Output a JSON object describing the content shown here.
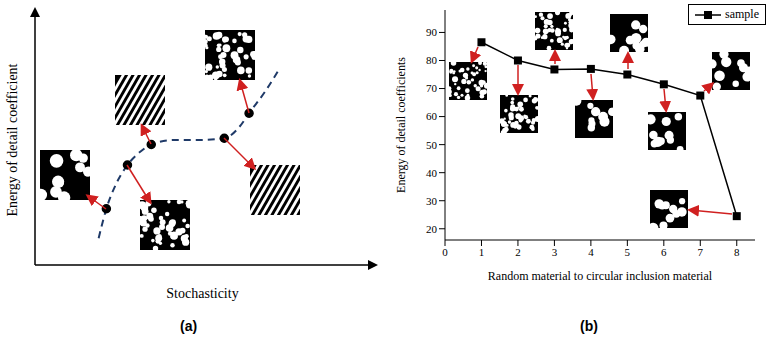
{
  "chart_data": [
    {
      "type": "line",
      "label": "(a)",
      "x_label": "Stochasticity",
      "y_label": "Energy of detail coefficient",
      "xlim": [
        0,
        10
      ],
      "ylim": [
        0,
        10
      ],
      "tick_labels": false,
      "grid": false,
      "series": [
        {
          "color": "#1f3a68",
          "line_style": "dashed",
          "marker": "none",
          "x": [
            1.9,
            2.13,
            2.41,
            2.76,
            3.18,
            3.47,
            4.18,
            4.89,
            5.65,
            6.11,
            6.39,
            6.88,
            7.3
          ],
          "values": [
            1.07,
            2.25,
            3.21,
            4.0,
            4.57,
            4.82,
            5.0,
            5.0,
            5.07,
            5.54,
            6.07,
            6.96,
            7.86
          ]
        },
        {
          "color": "#000000",
          "line_style": "none",
          "marker": "circle",
          "x": [
            2.13,
            2.76,
            3.47,
            5.65,
            6.39
          ],
          "values": [
            2.25,
            4.0,
            4.82,
            5.07,
            6.07
          ]
        }
      ]
    },
    {
      "type": "line",
      "label": "(b)",
      "x_label": "Random material to circular inclusion material",
      "y_label": "Energy of detail coefficients",
      "x": [
        1,
        2,
        3,
        4,
        5,
        6,
        7,
        8
      ],
      "xlim": [
        0,
        8.5
      ],
      "xticks": [
        0,
        1,
        2,
        3,
        4,
        5,
        6,
        7,
        8
      ],
      "ylim": [
        16,
        98
      ],
      "yticks": [
        20,
        30,
        40,
        50,
        60,
        70,
        80,
        90
      ],
      "legend": "upper right",
      "grid": false,
      "series": [
        {
          "name": "sample",
          "color": "#000000",
          "marker": "square",
          "line_style": "solid",
          "values": [
            86.5,
            80,
            76.8,
            77,
            75,
            71.5,
            67.5,
            24.5
          ]
        }
      ]
    }
  ]
}
